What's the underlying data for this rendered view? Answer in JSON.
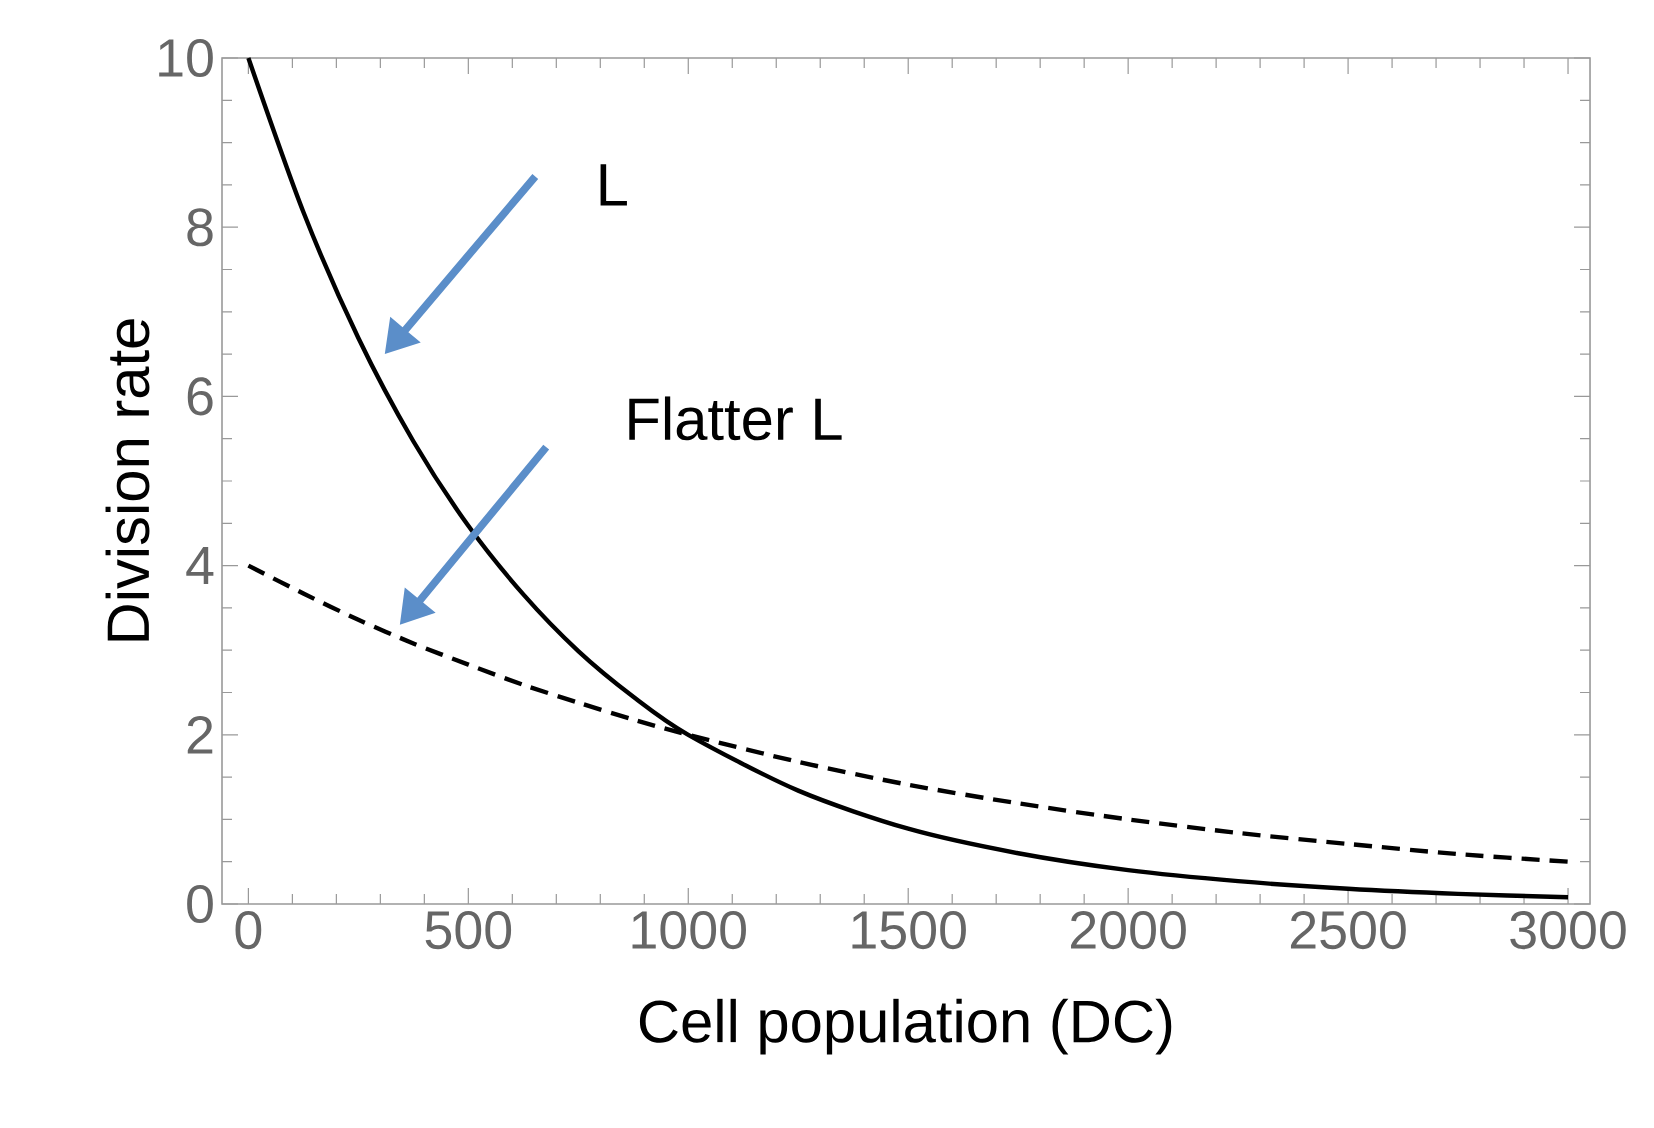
{
  "chart_data": {
    "type": "line",
    "xlabel": "Cell population (DC)",
    "ylabel": "Division rate",
    "xlim": [
      -60,
      3050
    ],
    "ylim": [
      0,
      10
    ],
    "xticks": [
      0,
      500,
      1000,
      1500,
      2000,
      2500,
      3000
    ],
    "yticks": [
      0,
      2,
      4,
      6,
      8,
      10
    ],
    "x": [
      0,
      125,
      250,
      375,
      500,
      625,
      750,
      875,
      1000,
      1250,
      1500,
      1750,
      2000,
      2250,
      2500,
      2750,
      3000
    ],
    "series": [
      {
        "color": "#000000",
        "line_style": "solid",
        "values": [
          10,
          8.18,
          6.69,
          5.47,
          4.47,
          3.66,
          2.99,
          2.45,
          2,
          1.34,
          0.89,
          0.6,
          0.4,
          0.27,
          0.18,
          0.12,
          0.08
        ]
      },
      {
        "color": "#000000",
        "line_style": "dashed",
        "values": [
          4,
          3.67,
          3.36,
          3.08,
          2.83,
          2.59,
          2.38,
          2.18,
          2,
          1.68,
          1.41,
          1.19,
          1,
          0.84,
          0.71,
          0.59,
          0.5
        ]
      }
    ],
    "annotations": [
      "L",
      "Flatter L"
    ],
    "grid": false,
    "marker": "none"
  }
}
